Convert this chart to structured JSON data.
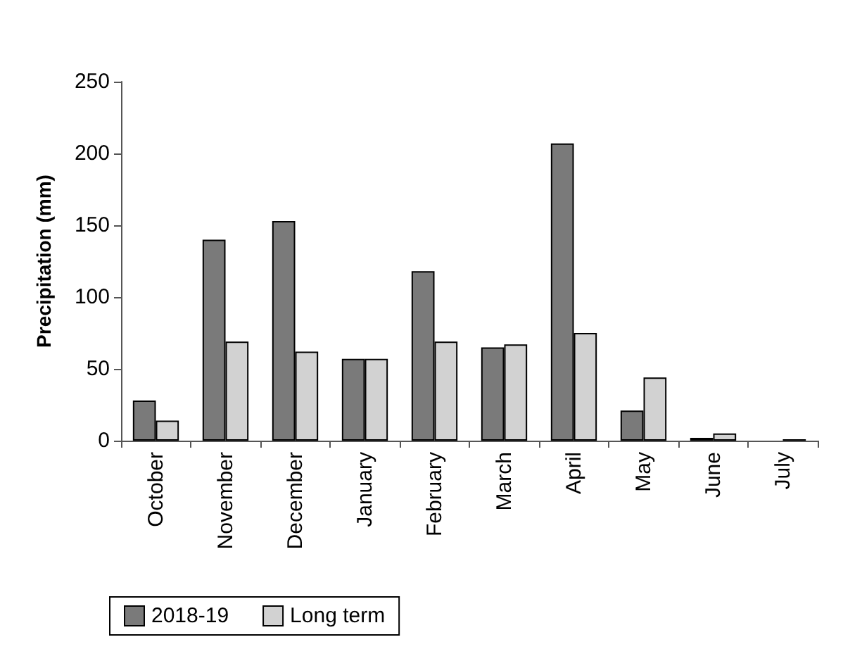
{
  "chart_data": {
    "type": "bar",
    "ylabel": "Precipitation (mm)",
    "categories": [
      "October",
      "November",
      "December",
      "January",
      "February",
      "March",
      "April",
      "May",
      "June",
      "July"
    ],
    "series": [
      {
        "name": "2018-19",
        "color": "#7a7a7a",
        "values": [
          28,
          140,
          153,
          57,
          118,
          65,
          207,
          21,
          2,
          0
        ]
      },
      {
        "name": "Long term",
        "color": "#d2d2d2",
        "values": [
          14,
          69,
          62,
          57,
          69,
          67,
          75,
          44,
          5,
          1
        ]
      }
    ],
    "ylim": [
      0,
      250
    ],
    "yticks": [
      0,
      50,
      100,
      150,
      200,
      250
    ],
    "grid": false,
    "legend": "bottom left"
  }
}
